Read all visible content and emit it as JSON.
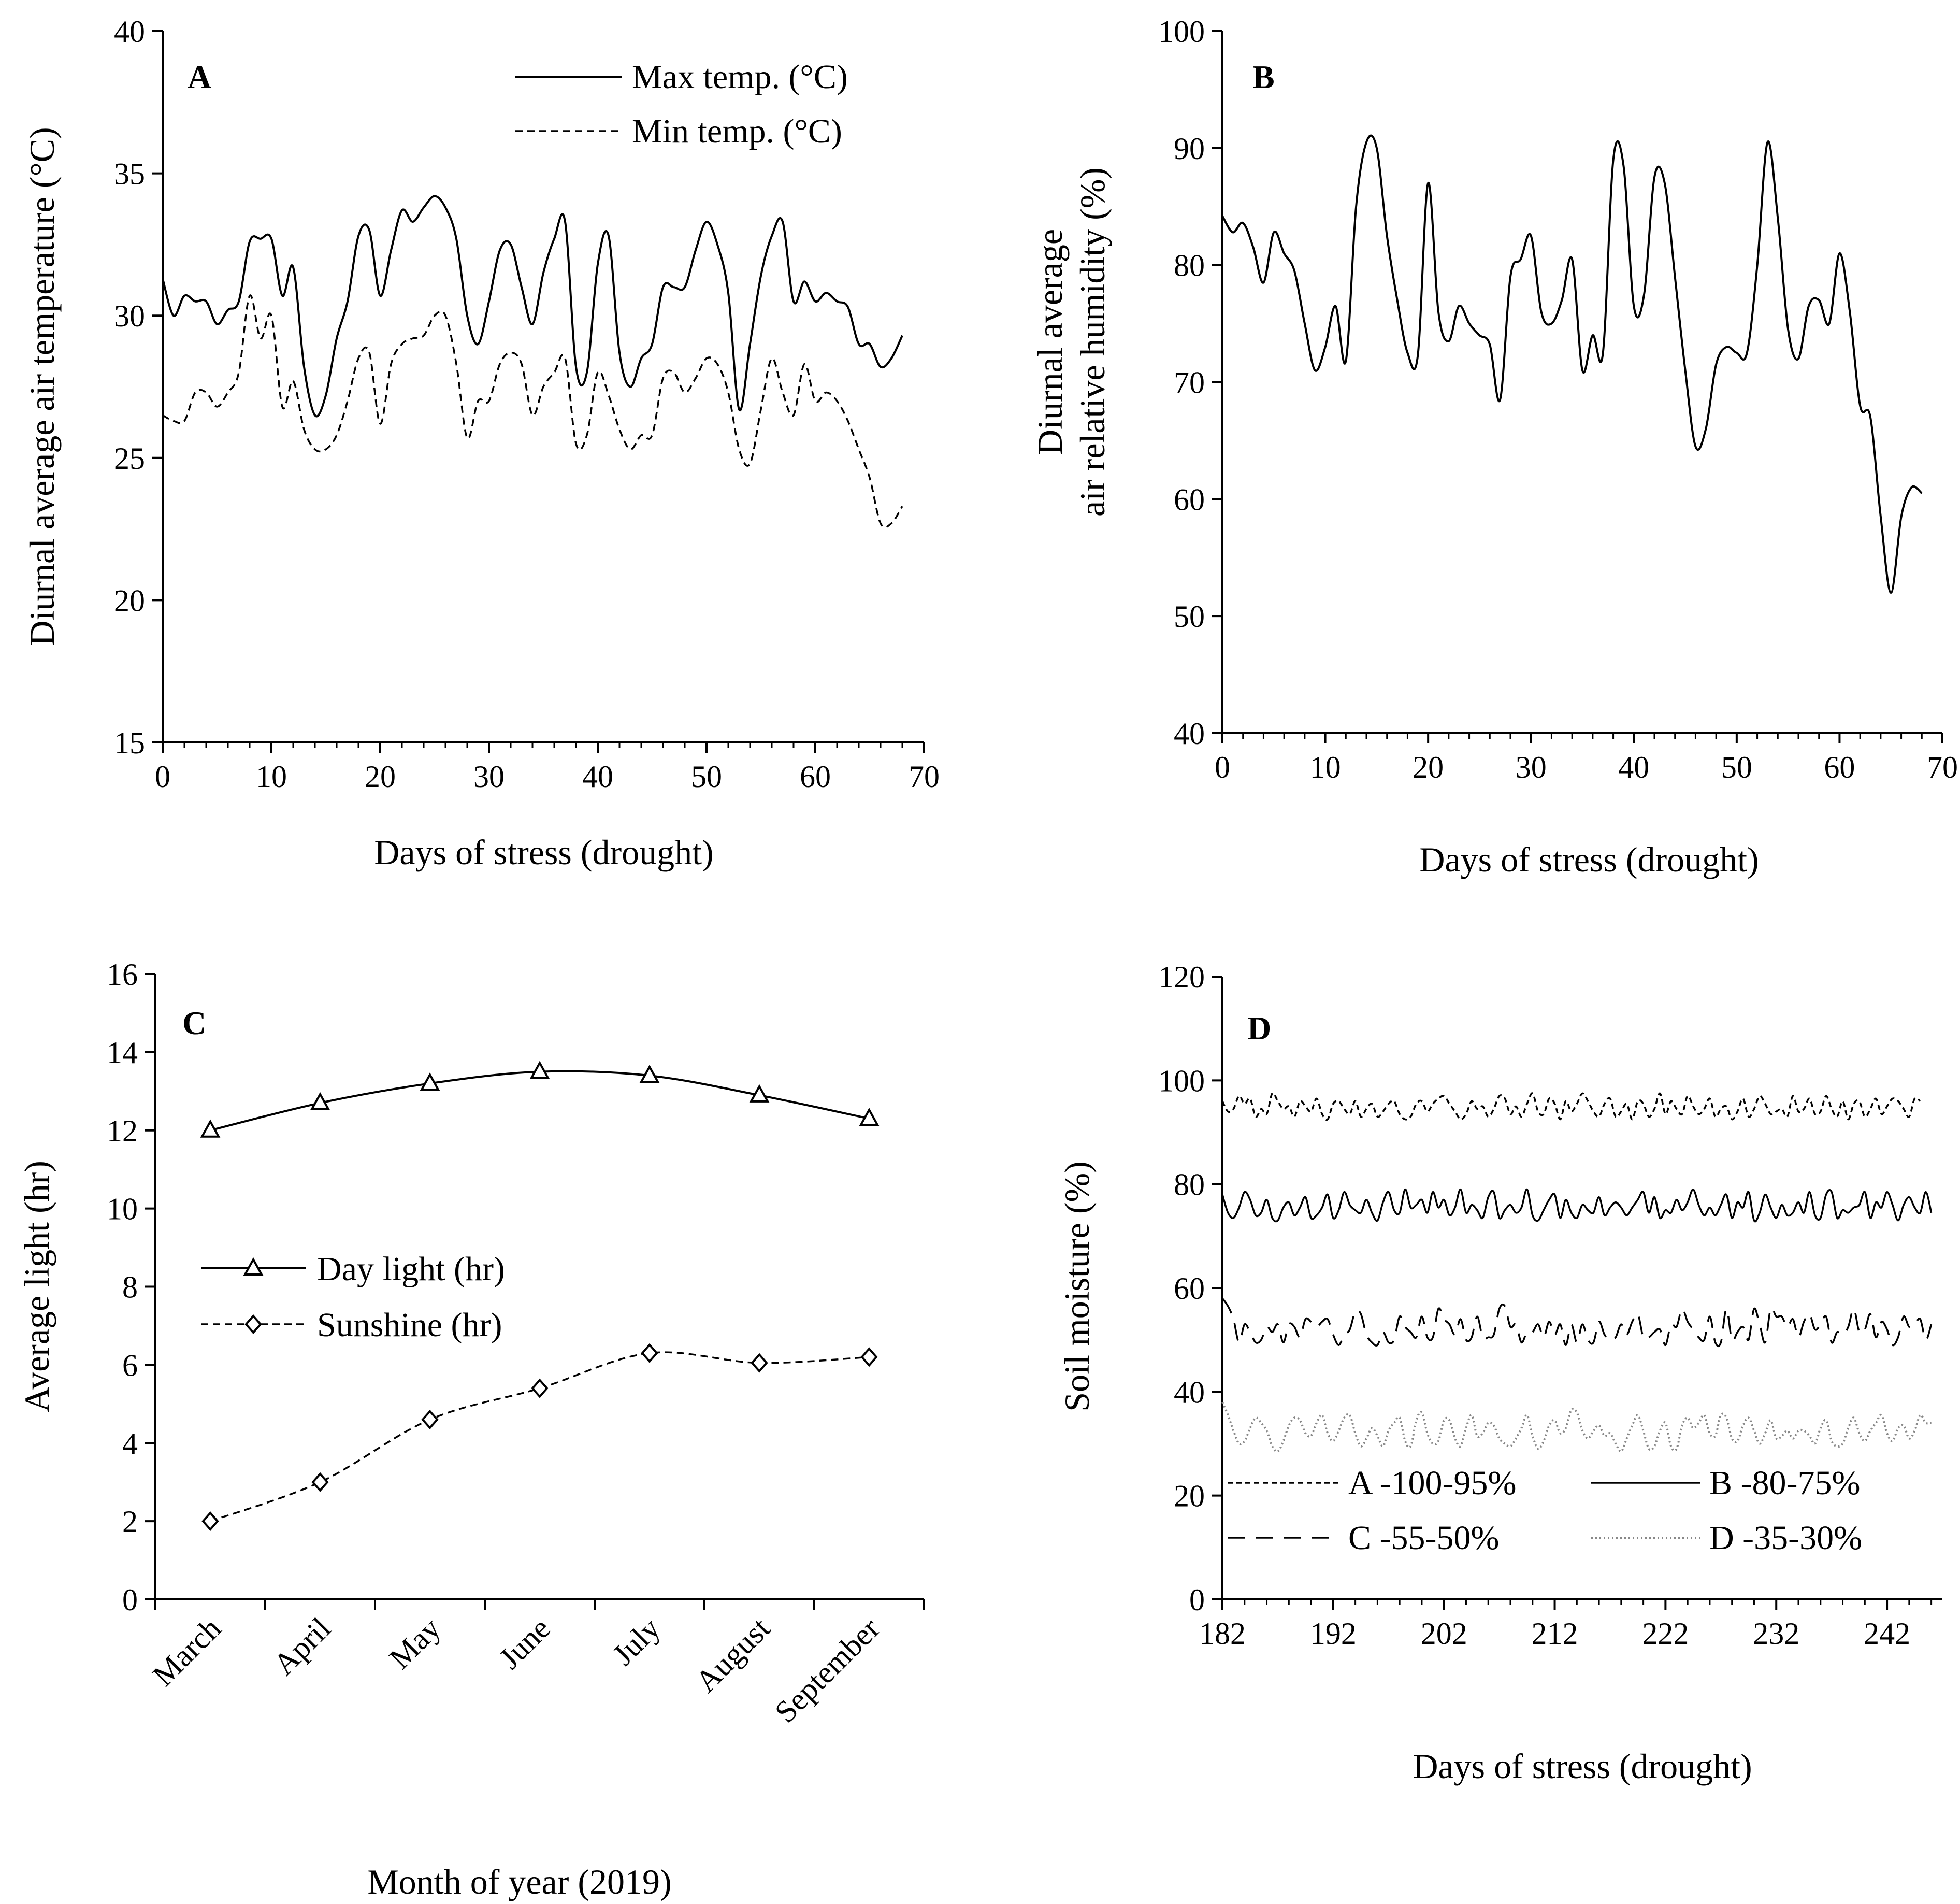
{
  "chart_data": [
    {
      "id": "A",
      "type": "line",
      "panel_label": "A",
      "xlabel": "Days of stress (drought)",
      "ylabel": "Diurnal average air temperature (°C)",
      "xlim": [
        0,
        70
      ],
      "ylim": [
        15,
        40
      ],
      "xticks": [
        0,
        10,
        20,
        30,
        40,
        50,
        60,
        70
      ],
      "yticks": [
        15,
        20,
        25,
        30,
        35,
        40
      ],
      "legend_position": "top-right",
      "x": [
        0,
        1,
        2,
        3,
        4,
        5,
        6,
        7,
        8,
        9,
        10,
        11,
        12,
        13,
        14,
        15,
        16,
        17,
        18,
        19,
        20,
        21,
        22,
        23,
        24,
        25,
        26,
        27,
        28,
        29,
        30,
        31,
        32,
        33,
        34,
        35,
        36,
        37,
        38,
        39,
        40,
        41,
        42,
        43,
        44,
        45,
        46,
        47,
        48,
        49,
        50,
        51,
        52,
        53,
        54,
        55,
        56,
        57,
        58,
        59,
        60,
        61,
        62,
        63,
        64,
        65,
        66,
        67,
        68
      ],
      "series": [
        {
          "name": "Max temp. (°C)",
          "style": "solid",
          "values": [
            31.3,
            30.0,
            30.7,
            30.5,
            30.5,
            29.7,
            30.2,
            30.5,
            32.6,
            32.7,
            32.7,
            30.7,
            31.7,
            28.2,
            26.5,
            27.2,
            29.2,
            30.5,
            32.8,
            33.0,
            30.7,
            32.3,
            33.7,
            33.3,
            33.8,
            34.2,
            33.8,
            32.7,
            30.0,
            29.0,
            30.5,
            32.3,
            32.5,
            31.0,
            29.7,
            31.5,
            32.7,
            33.3,
            28.2,
            28.0,
            31.8,
            32.8,
            28.7,
            27.5,
            28.5,
            29.0,
            31.0,
            31.0,
            31.0,
            32.3,
            33.3,
            32.5,
            30.8,
            26.7,
            29.0,
            31.4,
            32.8,
            33.3,
            30.5,
            31.2,
            30.5,
            30.8,
            30.5,
            30.3,
            29.0,
            29.0,
            28.2,
            28.5,
            29.3
          ]
        },
        {
          "name": "Min temp. (°C)",
          "style": "dashed",
          "values": [
            26.5,
            26.3,
            26.3,
            27.3,
            27.3,
            26.8,
            27.3,
            28.0,
            30.7,
            29.2,
            30.0,
            26.8,
            27.7,
            26.0,
            25.3,
            25.3,
            25.8,
            27.0,
            28.5,
            28.7,
            26.2,
            28.3,
            29.0,
            29.2,
            29.3,
            30.0,
            30.0,
            28.3,
            25.7,
            27.0,
            27.0,
            28.3,
            28.7,
            28.3,
            26.5,
            27.5,
            28.0,
            28.5,
            25.5,
            25.8,
            28.0,
            27.2,
            26.0,
            25.3,
            25.8,
            25.8,
            27.8,
            28.0,
            27.3,
            27.8,
            28.5,
            28.3,
            27.3,
            25.3,
            24.8,
            26.7,
            28.5,
            27.3,
            26.5,
            28.3,
            27.0,
            27.3,
            27.0,
            26.3,
            25.3,
            24.3,
            22.7,
            22.7,
            23.3
          ]
        }
      ]
    },
    {
      "id": "B",
      "type": "line",
      "panel_label": "B",
      "xlabel": "Days of stress (drought)",
      "ylabel_line1": "Diurnal average",
      "ylabel_line2": "air relative humidity (%)",
      "xlim": [
        0,
        70
      ],
      "ylim": [
        40,
        100
      ],
      "xticks": [
        0,
        10,
        20,
        30,
        40,
        50,
        60,
        70
      ],
      "yticks": [
        40,
        50,
        60,
        70,
        80,
        90,
        100
      ],
      "x": [
        0,
        1,
        2,
        3,
        4,
        5,
        6,
        7,
        8,
        9,
        10,
        11,
        12,
        13,
        14,
        15,
        16,
        17,
        18,
        19,
        20,
        21,
        22,
        23,
        24,
        25,
        26,
        27,
        28,
        29,
        30,
        31,
        32,
        33,
        34,
        35,
        36,
        37,
        38,
        39,
        40,
        41,
        42,
        43,
        44,
        45,
        46,
        47,
        48,
        49,
        50,
        51,
        52,
        53,
        54,
        55,
        56,
        57,
        58,
        59,
        60,
        61,
        62,
        63,
        64,
        65,
        66,
        67,
        68
      ],
      "series": [
        {
          "name": "Relative humidity",
          "style": "solid",
          "values": [
            84.2,
            82.8,
            83.6,
            81.5,
            78.5,
            82.8,
            81.0,
            79.5,
            75.0,
            71.0,
            73.0,
            76.5,
            71.8,
            85.0,
            90.5,
            90.0,
            82.5,
            77.0,
            72.5,
            72.3,
            87.0,
            76.0,
            73.5,
            76.5,
            75.0,
            74.0,
            73.2,
            68.5,
            79.0,
            80.5,
            82.5,
            76.0,
            75.0,
            77.0,
            80.5,
            71.0,
            74.0,
            72.5,
            89.0,
            88.5,
            76.5,
            77.5,
            87.5,
            87.0,
            79.0,
            71.0,
            64.5,
            66.0,
            71.5,
            73.0,
            72.5,
            72.5,
            80.0,
            90.5,
            84.0,
            74.5,
            72.0,
            76.5,
            77.0,
            75.0,
            81.0,
            76.0,
            68.0,
            67.0,
            58.5,
            52.0,
            58.5,
            61.0,
            60.5
          ]
        }
      ]
    },
    {
      "id": "C",
      "type": "line",
      "panel_label": "C",
      "xlabel": "Month of year (2019)",
      "ylabel": "Average light (hr)",
      "ylim": [
        0,
        16
      ],
      "yticks": [
        0,
        2,
        4,
        6,
        8,
        10,
        12,
        14,
        16
      ],
      "categories": [
        "March",
        "April",
        "May",
        "June",
        "July",
        "August",
        "September"
      ],
      "legend_position": "middle-left",
      "series": [
        {
          "name": "Day light (hr)",
          "style": "solid",
          "marker": "triangle",
          "values": [
            12.0,
            12.7,
            13.2,
            13.5,
            13.4,
            12.9,
            12.3
          ]
        },
        {
          "name": "Sunshine (hr)",
          "style": "dashed",
          "marker": "diamond",
          "values": [
            2.0,
            3.0,
            4.6,
            5.4,
            6.3,
            6.05,
            6.2
          ]
        }
      ]
    },
    {
      "id": "D",
      "type": "line",
      "panel_label": "D",
      "xlabel": "Days of stress (drought)",
      "ylabel": "Soil moisture (%)",
      "xlim": [
        182,
        247
      ],
      "ylim": [
        0,
        120
      ],
      "xticks": [
        182,
        192,
        202,
        212,
        222,
        232,
        242
      ],
      "yticks": [
        0,
        20,
        40,
        60,
        80,
        100,
        120
      ],
      "legend_position": "bottom",
      "x_start": 182,
      "x_step": 0.5,
      "series": [
        {
          "name": "A -100-95%",
          "style": "dashed-fine",
          "values": [
            96.0,
            94.0,
            94.5,
            97.0,
            95.5,
            96.5,
            93.0,
            94.5,
            93.5,
            97.5,
            96.0,
            94.5,
            95.0,
            93.0,
            96.0,
            95.0,
            94.0,
            96.5,
            93.5,
            92.5,
            95.5,
            96.0,
            94.5,
            93.5,
            96.0,
            93.0,
            94.5,
            95.5,
            93.0,
            94.0,
            95.5,
            96.0,
            93.5,
            92.5,
            93.0,
            95.5,
            96.0,
            94.0,
            95.5,
            96.5,
            97.0,
            95.5,
            94.0,
            92.5,
            93.5,
            96.0,
            94.5,
            95.0,
            93.0,
            94.5,
            97.0,
            96.5,
            93.5,
            95.0,
            93.0,
            95.5,
            97.5,
            94.0,
            93.5,
            96.5,
            95.5,
            92.5,
            96.0,
            94.0,
            95.5,
            97.5,
            96.0,
            94.0,
            93.0,
            95.5,
            96.5,
            93.0,
            94.0,
            95.5,
            92.5,
            96.0,
            95.5,
            93.0,
            94.5,
            97.5,
            93.5,
            96.0,
            94.5,
            93.5,
            97.0,
            95.0,
            93.5,
            94.5,
            96.5,
            93.0,
            94.5,
            95.0,
            92.5,
            94.0,
            96.5,
            93.0,
            94.5,
            97.0,
            95.5,
            93.5,
            94.0,
            94.5,
            93.0,
            97.0,
            94.0,
            94.5,
            96.5,
            93.5,
            94.0,
            97.0,
            94.5,
            93.0,
            96.0,
            92.5,
            95.5,
            96.0,
            93.0,
            94.5,
            96.5,
            93.5,
            95.0,
            96.5,
            96.0,
            94.5,
            93.0,
            96.5,
            96.0
          ]
        },
        {
          "name": "B -80-75%",
          "style": "solid",
          "values": [
            78.0,
            74.5,
            73.5,
            75.5,
            78.5,
            77.0,
            74.0,
            74.5,
            77.0,
            73.5,
            73.0,
            75.5,
            76.5,
            74.0,
            75.5,
            77.5,
            73.5,
            74.0,
            75.5,
            78.0,
            73.5,
            75.0,
            78.5,
            76.0,
            75.0,
            74.5,
            77.0,
            74.5,
            73.0,
            76.5,
            78.5,
            75.0,
            74.5,
            79.0,
            75.5,
            76.0,
            77.0,
            74.5,
            78.5,
            75.5,
            77.0,
            74.0,
            75.5,
            79.0,
            74.5,
            76.0,
            75.0,
            73.5,
            77.5,
            78.5,
            73.5,
            75.0,
            76.0,
            74.5,
            75.5,
            79.0,
            74.0,
            73.0,
            75.0,
            77.0,
            78.0,
            73.5,
            77.0,
            74.5,
            73.5,
            76.0,
            75.0,
            74.5,
            77.5,
            74.0,
            75.5,
            76.5,
            75.5,
            74.0,
            75.5,
            77.0,
            78.5,
            74.5,
            77.5,
            73.5,
            75.0,
            74.5,
            77.0,
            75.0,
            76.5,
            79.0,
            76.0,
            74.0,
            75.5,
            74.0,
            76.0,
            78.0,
            73.5,
            76.5,
            75.5,
            78.5,
            73.0,
            74.5,
            78.0,
            75.5,
            73.5,
            76.0,
            74.0,
            74.5,
            76.5,
            74.5,
            78.5,
            74.0,
            73.5,
            78.0,
            78.5,
            73.5,
            75.0,
            74.5,
            75.5,
            76.0,
            78.5,
            73.5,
            76.5,
            75.5,
            78.5,
            76.0,
            73.0,
            76.0,
            77.5,
            75.5,
            74.5,
            78.5,
            74.5
          ]
        },
        {
          "name": "C -55-50%",
          "style": "dashed-long",
          "values": [
            58.0,
            56.5,
            54.0,
            49.5,
            53.0,
            51.5,
            49.5,
            50.0,
            52.5,
            51.5,
            53.0,
            49.5,
            53.0,
            52.5,
            50.5,
            54.0,
            53.5,
            52.5,
            53.5,
            54.0,
            51.0,
            49.0,
            51.0,
            52.0,
            55.5,
            55.0,
            51.0,
            49.5,
            49.0,
            51.5,
            49.5,
            50.0,
            54.5,
            52.5,
            51.5,
            50.5,
            54.5,
            50.5,
            50.5,
            56.0,
            54.0,
            53.0,
            51.0,
            54.0,
            50.0,
            50.5,
            54.5,
            50.5,
            50.5,
            51.0,
            56.0,
            56.5,
            52.5,
            53.0,
            49.5,
            51.5,
            51.5,
            53.0,
            50.5,
            53.5,
            51.0,
            53.0,
            49.0,
            53.0,
            49.5,
            53.0,
            50.0,
            49.5,
            53.5,
            51.0,
            50.0,
            50.5,
            53.0,
            51.0,
            53.5,
            55.0,
            50.5,
            50.5,
            51.5,
            52.0,
            49.0,
            53.0,
            52.5,
            56.0,
            53.5,
            52.0,
            50.5,
            50.0,
            54.5,
            49.5,
            49.5,
            56.0,
            50.0,
            51.5,
            52.5,
            50.0,
            56.0,
            53.0,
            49.5,
            56.0,
            54.5,
            54.5,
            52.5,
            54.0,
            50.5,
            53.5,
            55.0,
            52.0,
            53.0,
            54.5,
            49.5,
            51.5,
            51.0,
            52.5,
            56.0,
            51.5,
            52.0,
            55.0,
            50.5,
            53.5,
            52.0,
            49.0,
            50.5,
            54.5,
            52.5,
            53.0,
            54.0,
            50.0,
            53.0
          ]
        },
        {
          "name": "D -35-30%",
          "style": "dotted",
          "values": [
            38.0,
            35.5,
            32.5,
            30.0,
            30.5,
            33.0,
            35.0,
            34.0,
            32.5,
            29.5,
            28.5,
            30.5,
            33.5,
            35.0,
            34.5,
            32.0,
            31.5,
            34.0,
            35.5,
            32.0,
            30.5,
            32.5,
            35.0,
            35.5,
            32.0,
            29.5,
            31.0,
            33.0,
            31.5,
            29.5,
            32.5,
            34.0,
            35.0,
            30.5,
            29.5,
            34.5,
            36.0,
            32.0,
            30.0,
            30.5,
            34.5,
            34.5,
            31.0,
            29.5,
            33.0,
            35.5,
            31.5,
            32.0,
            34.0,
            33.5,
            31.0,
            30.0,
            29.5,
            31.0,
            33.0,
            35.5,
            31.5,
            29.0,
            30.5,
            33.5,
            34.5,
            32.0,
            33.0,
            36.5,
            36.0,
            32.5,
            31.0,
            32.5,
            33.5,
            31.5,
            32.0,
            30.0,
            28.5,
            31.0,
            33.5,
            35.5,
            32.5,
            29.0,
            29.5,
            32.5,
            34.0,
            29.5,
            29.0,
            33.5,
            35.0,
            33.0,
            34.0,
            35.5,
            32.0,
            31.5,
            35.5,
            35.0,
            31.0,
            30.5,
            33.5,
            35.0,
            32.5,
            30.0,
            32.0,
            34.5,
            31.0,
            31.5,
            32.5,
            31.0,
            32.5,
            32.5,
            31.5,
            30.0,
            33.0,
            34.5,
            30.5,
            29.5,
            30.0,
            33.0,
            35.0,
            32.0,
            30.5,
            32.5,
            34.0,
            35.5,
            32.0,
            30.5,
            33.0,
            33.5,
            31.0,
            32.5,
            35.5,
            34.0,
            34.0
          ]
        }
      ]
    }
  ]
}
